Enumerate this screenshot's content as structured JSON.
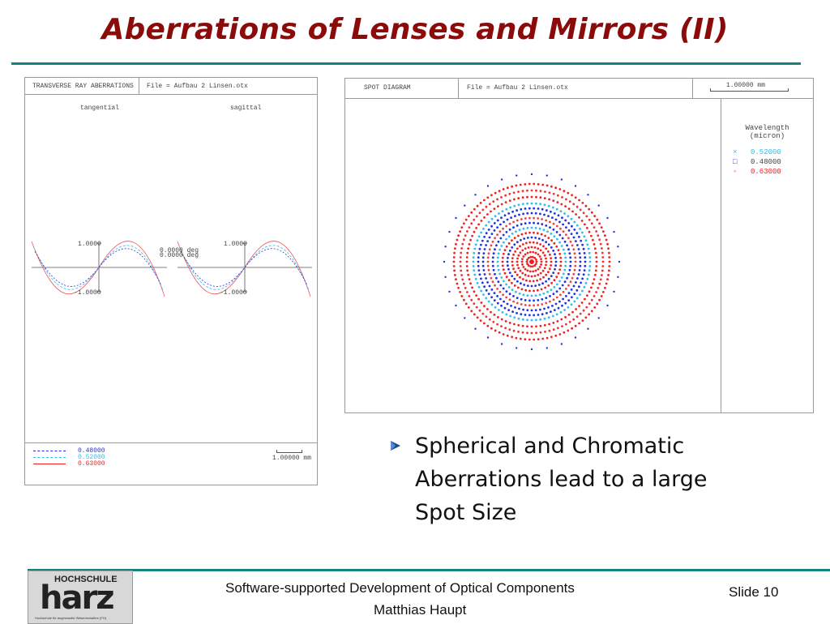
{
  "slide": {
    "title": "Aberrations of Lenses and Mirrors (II)",
    "bullet": "Spherical and Chromatic Aberrations lead to a large Spot Size"
  },
  "colors": {
    "title": "#8b0a0a",
    "rule": "#13837d",
    "wavelength_blue": "#2233dd",
    "wavelength_cyan": "#33bbee",
    "wavelength_red": "#ee2222"
  },
  "ray_plot": {
    "header_title": "TRANSVERSE RAY ABERRATIONS",
    "header_file": "File = Aufbau 2 Linsen.otx",
    "label_tangential": "tangential",
    "label_sagittal": "sagittal",
    "left_top_tick": "1.0000",
    "left_bottom_tick": "-1.0000",
    "right_top_tick": "1.0000",
    "right_bottom_tick": "-1.0000",
    "field_line1": "0.0000 deg",
    "field_line2": "0.0000 deg",
    "legend": [
      {
        "label": "0.48000",
        "color": "#2233dd",
        "icon": "dashed-line"
      },
      {
        "label": "0.52000",
        "color": "#33bbee",
        "icon": "dashed-line"
      },
      {
        "label": "0.63000",
        "color": "#ee2222",
        "icon": "solid-line"
      }
    ],
    "scale": "1.00000 mm"
  },
  "spot_diagram": {
    "header_title": "SPOT DIAGRAM",
    "header_file": "File = Aufbau 2 Linsen.otx",
    "scale": "1.00000 mm",
    "legend_title_line1": "Wavelength",
    "legend_title_line2": "(micron)",
    "legend": [
      {
        "symbol": "×",
        "label": "0.52000",
        "color": "#33bbee"
      },
      {
        "symbol": "□",
        "label": "0.48000",
        "color": "#2233dd"
      },
      {
        "symbol": "◦",
        "label": "0.63000",
        "color": "#ee2222"
      }
    ]
  },
  "footer": {
    "course": "Software-supported Development of Optical Components",
    "author": "Matthias Haupt",
    "slide_label": "Slide 10",
    "logo_word_top": "HOCHSCHULE",
    "logo_word_main": "harz",
    "logo_tagline": "Hochschule für angewandte Wissenschaften (FH)"
  }
}
